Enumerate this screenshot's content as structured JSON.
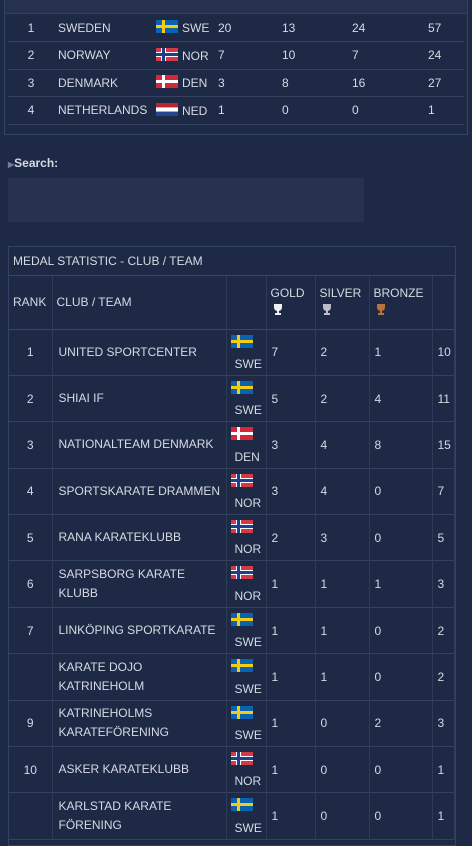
{
  "countries": {
    "rows": [
      {
        "rank": 1,
        "name": "SWEDEN",
        "code": "SWE",
        "gold": 20,
        "silver": 13,
        "bronze": 24,
        "total": 57
      },
      {
        "rank": 2,
        "name": "NORWAY",
        "code": "NOR",
        "gold": 7,
        "silver": 10,
        "bronze": 7,
        "total": 24
      },
      {
        "rank": 3,
        "name": "DENMARK",
        "code": "DEN",
        "gold": 3,
        "silver": 8,
        "bronze": 16,
        "total": 27
      },
      {
        "rank": 4,
        "name": "NETHERLANDS",
        "code": "NED",
        "gold": 1,
        "silver": 0,
        "bronze": 0,
        "total": 1
      }
    ]
  },
  "search": {
    "label": "Search:"
  },
  "clubs": {
    "title": "MEDAL STATISTIC - CLUB / TEAM",
    "headers": {
      "rank": "RANK",
      "club": "CLUB / TEAM",
      "gold": "GOLD",
      "silver": "SILVER",
      "bronze": "BRONZE"
    },
    "rows": [
      {
        "rank": 1,
        "name": "UNITED SPORTCENTER",
        "code": "SWE",
        "gold": 7,
        "silver": 2,
        "bronze": 1,
        "total": 10
      },
      {
        "rank": 2,
        "name": "SHIAI IF",
        "code": "SWE",
        "gold": 5,
        "silver": 2,
        "bronze": 4,
        "total": 11
      },
      {
        "rank": 3,
        "name": "NATIONALTEAM DENMARK",
        "code": "DEN",
        "gold": 3,
        "silver": 4,
        "bronze": 8,
        "total": 15
      },
      {
        "rank": 4,
        "name": "SPORTSKARATE DRAMMEN",
        "code": "NOR",
        "gold": 3,
        "silver": 4,
        "bronze": 0,
        "total": 7
      },
      {
        "rank": 5,
        "name": "RANA KARATEKLUBB",
        "code": "NOR",
        "gold": 2,
        "silver": 3,
        "bronze": 0,
        "total": 5
      },
      {
        "rank": 6,
        "name": "SARPSBORG KARATE KLUBB",
        "code": "NOR",
        "gold": 1,
        "silver": 1,
        "bronze": 1,
        "total": 3
      },
      {
        "rank": 7,
        "name": "LINKÖPING SPORTKARATE",
        "code": "SWE",
        "gold": 1,
        "silver": 1,
        "bronze": 0,
        "total": 2
      },
      {
        "rank": null,
        "name": "KARATE DOJO KATRINEHOLM",
        "code": "SWE",
        "gold": 1,
        "silver": 1,
        "bronze": 0,
        "total": 2
      },
      {
        "rank": 9,
        "name": "KATRINEHOLMS KARATEFÖRENING",
        "code": "SWE",
        "gold": 1,
        "silver": 0,
        "bronze": 2,
        "total": 3
      },
      {
        "rank": 10,
        "name": "ASKER KARATEKLUBB",
        "code": "NOR",
        "gold": 1,
        "silver": 0,
        "bronze": 0,
        "total": 1
      },
      {
        "rank": null,
        "name": "KARLSTAD KARATE FÖRENING",
        "code": "SWE",
        "gold": 1,
        "silver": 0,
        "bronze": 0,
        "total": 1
      }
    ]
  }
}
